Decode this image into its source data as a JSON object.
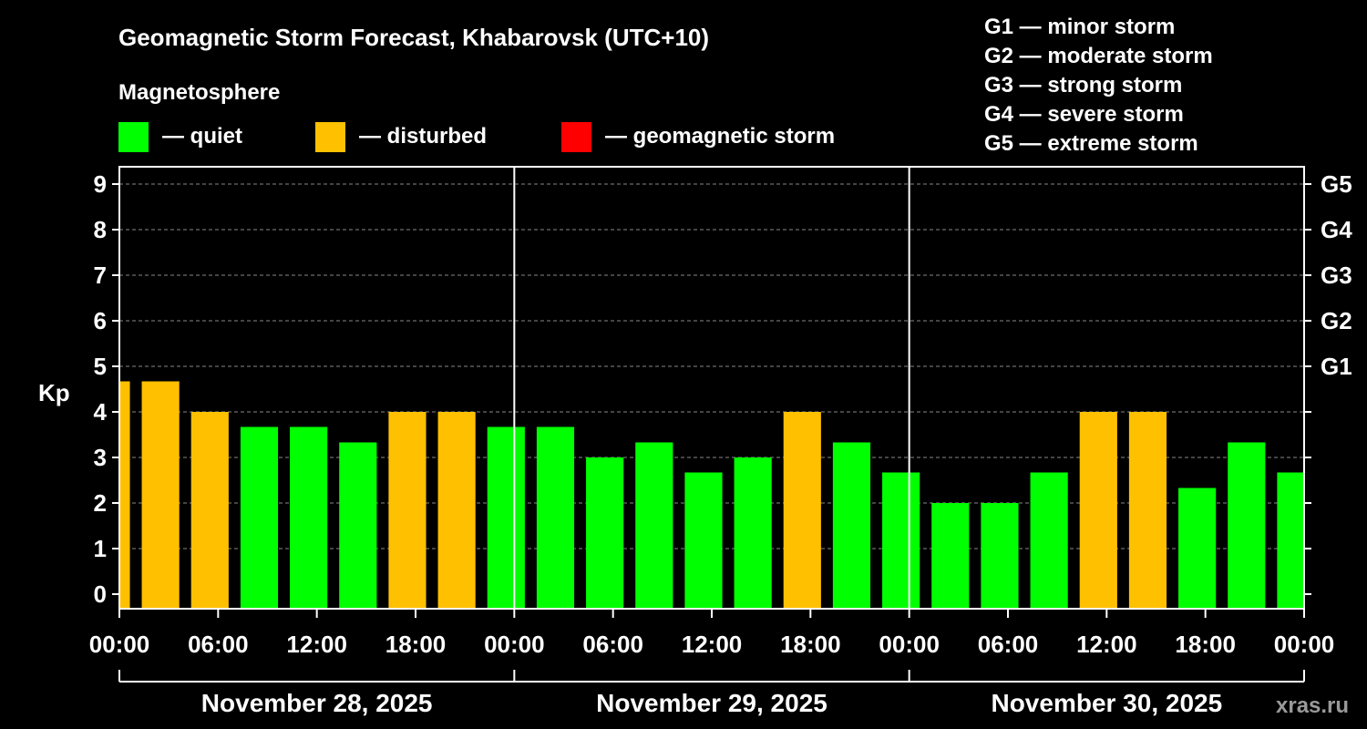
{
  "colors": {
    "background": "#000000",
    "quiet": "#00ff00",
    "disturbed": "#ffc000",
    "storm": "#ff0000",
    "grid": "#888888",
    "axis": "#ffffff"
  },
  "legend": {
    "section_title": "Magnetosphere",
    "items": [
      {
        "key": "quiet",
        "label": "— quiet"
      },
      {
        "key": "disturbed",
        "label": "— disturbed"
      },
      {
        "key": "storm",
        "label": "— geomagnetic storm"
      }
    ],
    "g_scale": [
      "G1 — minor storm",
      "G2 — moderate storm",
      "G3 — strong storm",
      "G4 — severe storm",
      "G5 — extreme storm"
    ]
  },
  "watermark": "xras.ru",
  "chart_data": {
    "type": "bar",
    "title": "Geomagnetic Storm Forecast, Khabarovsk (UTC+10)",
    "ylabel": "Kp",
    "ylim": [
      0,
      9
    ],
    "yticks": [
      "0",
      "1",
      "2",
      "3",
      "4",
      "5",
      "6",
      "7",
      "8",
      "9"
    ],
    "right_ticks": [
      {
        "kp": 5,
        "label": "G1"
      },
      {
        "kp": 6,
        "label": "G2"
      },
      {
        "kp": 7,
        "label": "G3"
      },
      {
        "kp": 8,
        "label": "G4"
      },
      {
        "kp": 9,
        "label": "G5"
      }
    ],
    "x_range_hours": [
      0,
      72
    ],
    "interval_hours": 3,
    "start_offset_hours": -2,
    "xticks": [
      {
        "hour": 0,
        "label": "00:00"
      },
      {
        "hour": 6,
        "label": "06:00"
      },
      {
        "hour": 12,
        "label": "12:00"
      },
      {
        "hour": 18,
        "label": "18:00"
      },
      {
        "hour": 24,
        "label": "00:00"
      },
      {
        "hour": 30,
        "label": "06:00"
      },
      {
        "hour": 36,
        "label": "12:00"
      },
      {
        "hour": 42,
        "label": "18:00"
      },
      {
        "hour": 48,
        "label": "00:00"
      },
      {
        "hour": 54,
        "label": "06:00"
      },
      {
        "hour": 60,
        "label": "12:00"
      },
      {
        "hour": 66,
        "label": "18:00"
      },
      {
        "hour": 72,
        "label": "00:00"
      }
    ],
    "days": [
      {
        "label": "November 28, 2025",
        "start_hour": 0,
        "end_hour": 24
      },
      {
        "label": "November 29, 2025",
        "start_hour": 24,
        "end_hour": 48
      },
      {
        "label": "November 30, 2025",
        "start_hour": 48,
        "end_hour": 72
      }
    ],
    "values": [
      4.67,
      4.67,
      4.0,
      3.67,
      3.67,
      3.33,
      4.0,
      4.0,
      3.67,
      3.67,
      3.0,
      3.33,
      2.67,
      3.0,
      4.0,
      3.33,
      2.67,
      2.0,
      2.0,
      2.67,
      4.0,
      4.0,
      2.33,
      3.33,
      2.67
    ],
    "levels": [
      "disturbed",
      "disturbed",
      "disturbed",
      "quiet",
      "quiet",
      "quiet",
      "disturbed",
      "disturbed",
      "quiet",
      "quiet",
      "quiet",
      "quiet",
      "quiet",
      "quiet",
      "disturbed",
      "quiet",
      "quiet",
      "quiet",
      "quiet",
      "quiet",
      "disturbed",
      "disturbed",
      "quiet",
      "quiet",
      "quiet"
    ]
  }
}
